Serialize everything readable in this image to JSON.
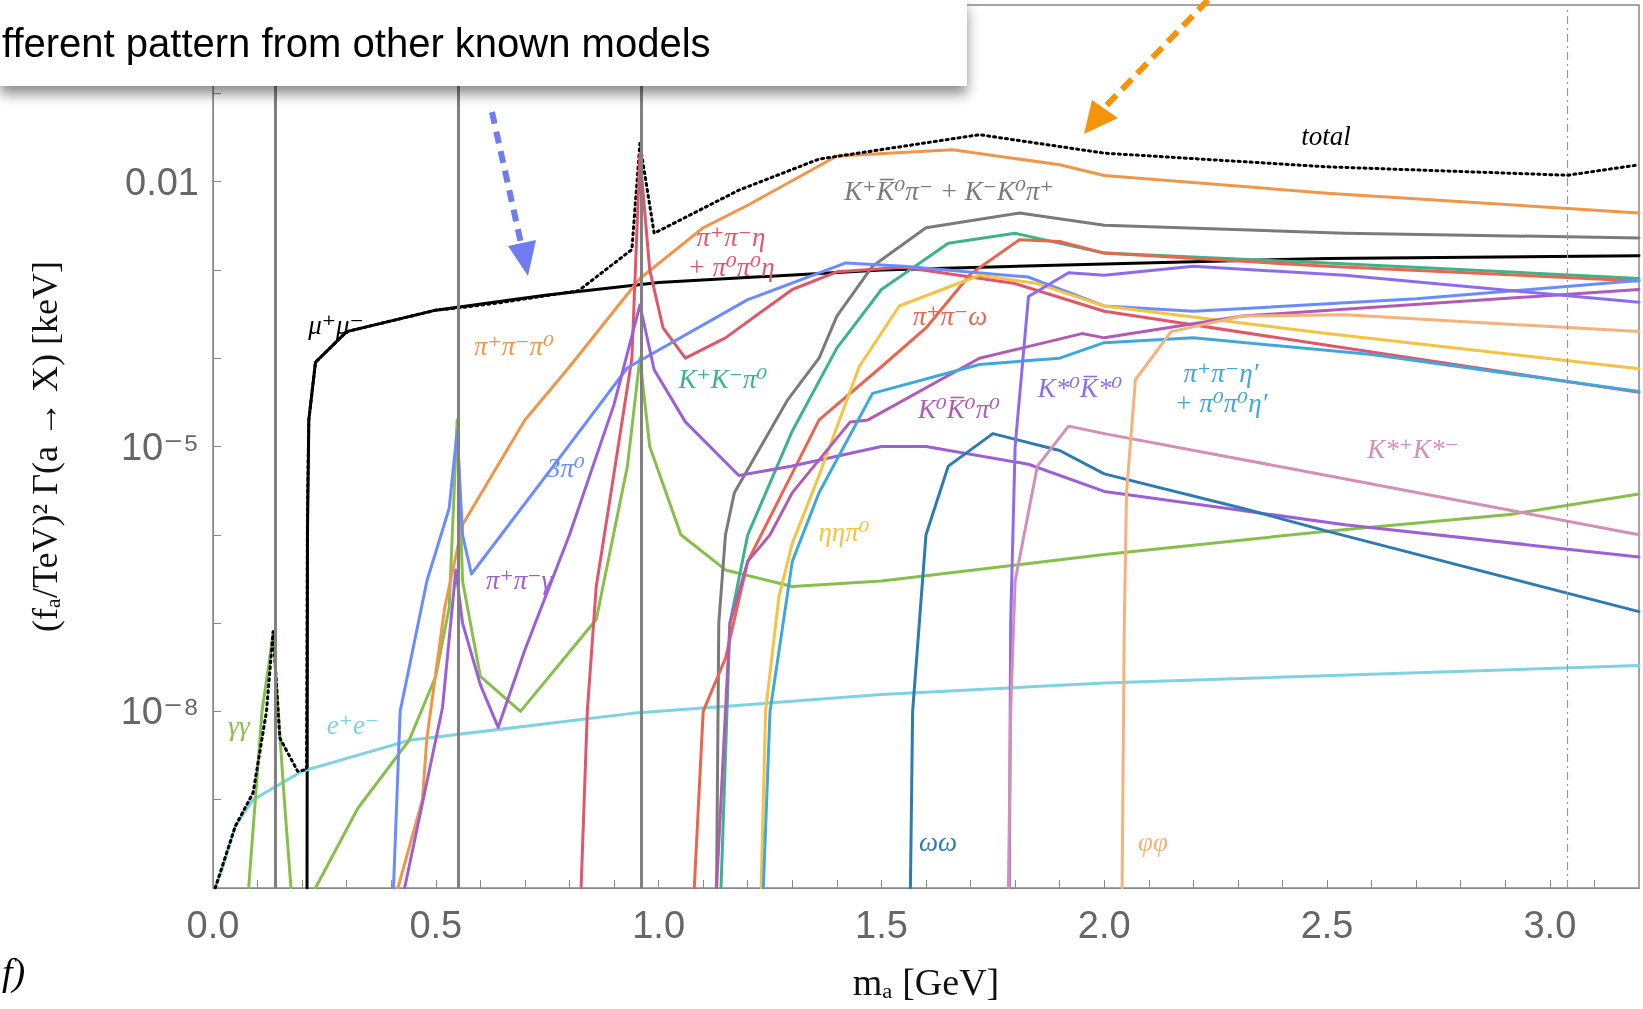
{
  "chart_data": {
    "type": "line",
    "xlabel": "mₐ [GeV]",
    "ylabel": "(fₐ/TeV)² Γ(a → X) [keV]",
    "log": "y",
    "grid": false,
    "legend": false,
    "marker": "none",
    "line_style": "solid",
    "xlim": [
      0,
      3.2
    ],
    "xticks": [
      {
        "value": 0,
        "label": "0.0"
      },
      {
        "value": 0.1,
        "label": null
      },
      {
        "value": 0.2,
        "label": null
      },
      {
        "value": 0.3,
        "label": null
      },
      {
        "value": 0.4,
        "label": null
      },
      {
        "value": 0.5,
        "label": "0.5"
      },
      {
        "value": 0.6,
        "label": null
      },
      {
        "value": 0.7,
        "label": null
      },
      {
        "value": 0.8,
        "label": null
      },
      {
        "value": 0.9,
        "label": null
      },
      {
        "value": 1,
        "label": "1.0"
      },
      {
        "value": 1.1,
        "label": null
      },
      {
        "value": 1.2,
        "label": null
      },
      {
        "value": 1.3,
        "label": null
      },
      {
        "value": 1.4,
        "label": null
      },
      {
        "value": 1.5,
        "label": "1.5"
      },
      {
        "value": 1.6,
        "label": null
      },
      {
        "value": 1.7,
        "label": null
      },
      {
        "value": 1.8,
        "label": null
      },
      {
        "value": 1.9,
        "label": null
      },
      {
        "value": 2,
        "label": "2.0"
      },
      {
        "value": 2.1,
        "label": null
      },
      {
        "value": 2.2,
        "label": null
      },
      {
        "value": 2.3,
        "label": null
      },
      {
        "value": 2.4,
        "label": null
      },
      {
        "value": 2.5,
        "label": "2.5"
      },
      {
        "value": 2.6,
        "label": null
      },
      {
        "value": 2.7,
        "label": null
      },
      {
        "value": 2.8,
        "label": null
      },
      {
        "value": 2.9,
        "label": null
      },
      {
        "value": 3,
        "label": "3.0"
      },
      {
        "value": 3.1,
        "label": null
      }
    ],
    "ylim": [
      1e-10,
      1
    ],
    "yticks": [
      {
        "value": 1e-10,
        "label": null
      },
      {
        "value": 1e-09,
        "label": null
      },
      {
        "value": 1e-08,
        "label": "10⁻⁸"
      },
      {
        "value": 1e-07,
        "label": null
      },
      {
        "value": 1e-06,
        "label": null
      },
      {
        "value": 1e-05,
        "label": "10⁻⁵"
      },
      {
        "value": 0.0001,
        "label": null
      },
      {
        "value": 0.001,
        "label": null
      },
      {
        "value": 0.01,
        "label": "0.01"
      },
      {
        "value": 0.1,
        "label": null
      },
      {
        "value": 1,
        "label": null
      }
    ],
    "ref_lines": [
      {
        "axis": "x",
        "value": 0.135,
        "color": "#808080"
      },
      {
        "axis": "x",
        "value": 0.548,
        "color": "#808080"
      },
      {
        "axis": "x",
        "value": 0.958,
        "color": "#808080"
      },
      {
        "axis": "x",
        "value": 3.04,
        "color": "#999999",
        "line_style": "dashed"
      }
    ],
    "series": [
      {
        "name": "μ⁺μ⁻",
        "color": "#000000",
        "x": [
          0.211,
          0.212,
          0.215,
          0.23,
          0.3,
          0.5,
          0.75,
          1.0,
          1.5,
          2.0,
          2.5,
          3.2
        ],
        "values": [
          1e-10,
          1e-06,
          2e-05,
          9e-05,
          0.0002,
          0.00035,
          0.00052,
          0.00072,
          0.001,
          0.00117,
          0.00135,
          0.00145
        ]
      },
      {
        "name": "e⁺e⁻",
        "color": "#7fd3e0",
        "x": [
          0.005,
          0.02,
          0.05,
          0.09,
          0.2,
          0.44,
          0.94,
          1.5,
          2.0,
          3.2
        ],
        "values": [
          1e-10,
          1.6e-10,
          5e-10,
          1e-09,
          2.1e-09,
          4.7e-09,
          9.5e-09,
          1.55e-08,
          2.1e-08,
          3.3e-08
        ]
      },
      {
        "name": "γγ",
        "color": "#86c04a",
        "x": [
          0.08,
          0.11,
          0.13,
          0.135,
          0.14,
          0.16,
          0.175,
          0.2,
          0.23,
          0.325,
          0.44,
          0.5,
          0.53,
          0.548,
          0.56,
          0.6,
          0.69,
          0.86,
          0.93,
          0.958,
          0.98,
          1.05,
          1.15,
          1.3,
          1.5,
          2.0,
          2.5,
          2.91,
          3.2
        ],
        "values": [
          1e-10,
          1e-08,
          5e-08,
          8e-08,
          3e-08,
          1e-09,
          1e-10,
          null,
          1e-10,
          8e-10,
          4.7e-09,
          2.5e-08,
          1.5e-07,
          2e-05,
          3e-07,
          2.5e-08,
          1e-08,
          1.1e-07,
          6e-06,
          0.0001,
          1e-05,
          1e-06,
          4e-07,
          2.6e-07,
          3e-07,
          6e-07,
          1.1e-06,
          1.7e-06,
          2.9e-06
        ]
      },
      {
        "name": "π⁺π⁻π⁰",
        "color": "#f0964a",
        "x": [
          0.415,
          0.47,
          0.48,
          0.52,
          0.56,
          0.7,
          0.8,
          0.958,
          1.1,
          1.2,
          1.4,
          1.66,
          1.9,
          2.0,
          2.5,
          3.2
        ],
        "values": [
          1e-10,
          1e-09,
          5e-09,
          1.5e-07,
          1.3e-06,
          2e-05,
          8e-05,
          0.0008,
          0.003,
          0.0054,
          0.0195,
          0.023,
          0.0155,
          0.0117,
          0.0074,
          0.0044
        ]
      },
      {
        "name": "total",
        "color": "#000000",
        "line_style": "dotted",
        "x": [
          0.005,
          0.05,
          0.09,
          0.12,
          0.135,
          0.15,
          0.19,
          0.21,
          0.212,
          0.215,
          0.23,
          0.3,
          0.5,
          0.548,
          0.65,
          0.82,
          0.94,
          0.958,
          0.99,
          1.18,
          1.36,
          1.72,
          2.0,
          2.5,
          3.04,
          3.2
        ],
        "values": [
          1e-10,
          5e-10,
          1.2e-09,
          1e-08,
          8e-08,
          5e-09,
          2.1e-09,
          2.2e-09,
          2e-06,
          2e-05,
          9e-05,
          0.0002,
          0.00035,
          0.00037,
          0.00043,
          0.00058,
          0.0017,
          0.027,
          0.0026,
          0.008,
          0.018,
          0.034,
          0.021,
          0.0147,
          0.0118,
          0.0155
        ]
      },
      {
        "name": "K⁺K̅⁰π⁻ + K⁻K⁰π⁺",
        "color": "#7a7a7a",
        "x": [
          1.13,
          1.135,
          1.15,
          1.17,
          1.29,
          1.36,
          1.4,
          1.48,
          1.6,
          1.81,
          2.0,
          2.54,
          3.2
        ],
        "values": [
          1e-10,
          1e-07,
          1e-06,
          3e-06,
          3.4e-05,
          0.0001,
          0.0003,
          0.0011,
          0.003,
          0.0044,
          0.0032,
          0.0026,
          0.0023
        ]
      },
      {
        "name": "K⁺K⁻π⁰",
        "color": "#3db38a",
        "x": [
          1.14,
          1.16,
          1.2,
          1.3,
          1.4,
          1.5,
          1.65,
          1.8,
          2.0,
          2.5,
          3.2
        ],
        "values": [
          1e-10,
          1e-07,
          1e-06,
          1.5e-05,
          0.00013,
          0.0006,
          0.002,
          0.0026,
          0.00155,
          0.0012,
          0.0008
        ]
      },
      {
        "name": "π⁺π⁻η\n+ π⁰π⁰η",
        "color": "#e0566a",
        "x": [
          0.826,
          0.84,
          0.86,
          0.9,
          0.94,
          0.958,
          0.98,
          1.01,
          1.06,
          1.15,
          1.3,
          1.4,
          1.55,
          1.8,
          2.0,
          2.5,
          3.2
        ],
        "values": [
          1e-10,
          1e-08,
          2.6e-07,
          5e-06,
          0.0001,
          0.02,
          0.001,
          0.00022,
          0.0001,
          0.00017,
          0.0006,
          0.00095,
          0.00107,
          0.0007,
          0.00034,
          0.00014,
          4.1e-05
        ]
      },
      {
        "name": "π⁺π⁻ω",
        "color": "#e8664f",
        "x": [
          1.08,
          1.1,
          1.15,
          1.2,
          1.3,
          1.36,
          1.5,
          1.6,
          1.7,
          1.81,
          1.9,
          2.0,
          2.5,
          3.2
        ],
        "values": [
          1e-10,
          1e-08,
          4e-08,
          5e-07,
          5e-06,
          2e-05,
          8e-05,
          0.00022,
          0.0009,
          0.0022,
          0.0021,
          0.00155,
          0.0011,
          0.00075
        ]
      },
      {
        "name": "3π⁰",
        "color": "#6b8cff",
        "x": [
          0.405,
          0.42,
          0.48,
          0.53,
          0.548,
          0.56,
          0.58,
          0.77,
          0.93,
          1.2,
          1.42,
          1.55,
          1.83,
          2.0,
          2.2,
          2.7,
          3.2
        ],
        "values": [
          1e-10,
          1e-08,
          3e-07,
          2e-06,
          1.5e-05,
          1e-06,
          3.6e-07,
          6.6e-06,
          7.8e-05,
          0.00046,
          0.0012,
          0.0011,
          0.00083,
          0.00039,
          0.00034,
          0.00047,
          0.00076
        ]
      },
      {
        "name": "π⁺π⁻γ",
        "color": "#9b5fd6",
        "x": [
          0.43,
          0.515,
          0.545,
          0.56,
          0.6,
          0.64,
          0.7,
          0.8,
          0.9,
          0.958,
          0.99,
          1.06,
          1.18,
          1.3,
          1.5,
          1.6,
          1.83,
          2.0,
          2.54,
          3.2
        ],
        "values": [
          1e-10,
          1.1e-08,
          4e-07,
          1e-07,
          2e-08,
          6.6e-09,
          5e-08,
          1e-06,
          3e-05,
          0.0004,
          7.4e-05,
          1.9e-05,
          4.7e-06,
          6e-06,
          1e-05,
          1e-05,
          6.3e-06,
          3.1e-06,
          1.3e-06,
          5.6e-07
        ]
      },
      {
        "name": "ηηπ⁰",
        "color": "#f5c242",
        "x": [
          1.23,
          1.24,
          1.27,
          1.3,
          1.36,
          1.45,
          1.54,
          1.72,
          1.85,
          2.0,
          2.5,
          3.2
        ],
        "values": [
          1e-10,
          1e-08,
          2e-07,
          8e-07,
          4.7e-06,
          8e-05,
          0.00039,
          0.00087,
          0.0007,
          0.00039,
          0.00019,
          7.6e-05
        ]
      },
      {
        "name": "K⁰K̅⁰π⁰",
        "color": "#b05cb5",
        "x": [
          1.13,
          1.16,
          1.2,
          1.25,
          1.3,
          1.43,
          1.47,
          1.72,
          1.95,
          2.0,
          2.31,
          3.2
        ],
        "values": [
          1e-10,
          1e-07,
          5e-07,
          1e-06,
          3e-06,
          1.9e-05,
          2e-05,
          0.0001,
          0.00019,
          0.00017,
          0.0003,
          0.0006
        ]
      },
      {
        "name": "π⁺π⁻η′\n+ π⁰π⁰η′",
        "color": "#3fa7dc",
        "x": [
          1.235,
          1.25,
          1.3,
          1.36,
          1.48,
          1.72,
          1.9,
          2.0,
          2.2,
          2.6,
          3.2
        ],
        "values": [
          1e-10,
          1e-08,
          5e-07,
          3e-06,
          4e-05,
          8.5e-05,
          0.0001,
          0.00015,
          0.00017,
          0.00011,
          4.2e-05
        ]
      },
      {
        "name": "ωω",
        "color": "#2e7bb0",
        "x": [
          1.565,
          1.57,
          1.6,
          1.65,
          1.75,
          1.9,
          2.0,
          2.31,
          2.5,
          3.2
        ],
        "values": [
          1e-10,
          1e-08,
          1e-06,
          6e-06,
          1.4e-05,
          9e-06,
          4.9e-06,
          2e-06,
          1.1e-06,
          1.35e-07
        ]
      },
      {
        "name": "K*⁰K̅*⁰",
        "color": "#8b6cf0",
        "x": [
          1.787,
          1.79,
          1.8,
          1.83,
          1.92,
          2.0,
          2.2,
          2.54,
          3.2
        ],
        "values": [
          1e-10,
          1e-07,
          1e-05,
          0.0005,
          0.00093,
          0.00087,
          0.0011,
          0.00087,
          0.00043
        ]
      },
      {
        "name": "K*⁺K*⁻",
        "color": "#d38fb5",
        "x": [
          1.785,
          1.79,
          1.8,
          1.85,
          1.92,
          2.0,
          2.5,
          3.2
        ],
        "values": [
          1e-10,
          1e-08,
          3e-07,
          6e-06,
          1.7e-05,
          1.4e-05,
          4.7e-06,
          1e-06
        ]
      },
      {
        "name": "φφ",
        "color": "#f5b27a",
        "x": [
          2.04,
          2.045,
          2.05,
          2.07,
          2.15,
          2.31,
          2.54,
          3.2
        ],
        "values": [
          1e-10,
          1e-07,
          3e-06,
          5.7e-05,
          0.0002,
          0.0003,
          0.00031,
          0.0002
        ]
      }
    ],
    "annotations": [
      "fferent pattern from other known models",
      "f)"
    ]
  }
}
